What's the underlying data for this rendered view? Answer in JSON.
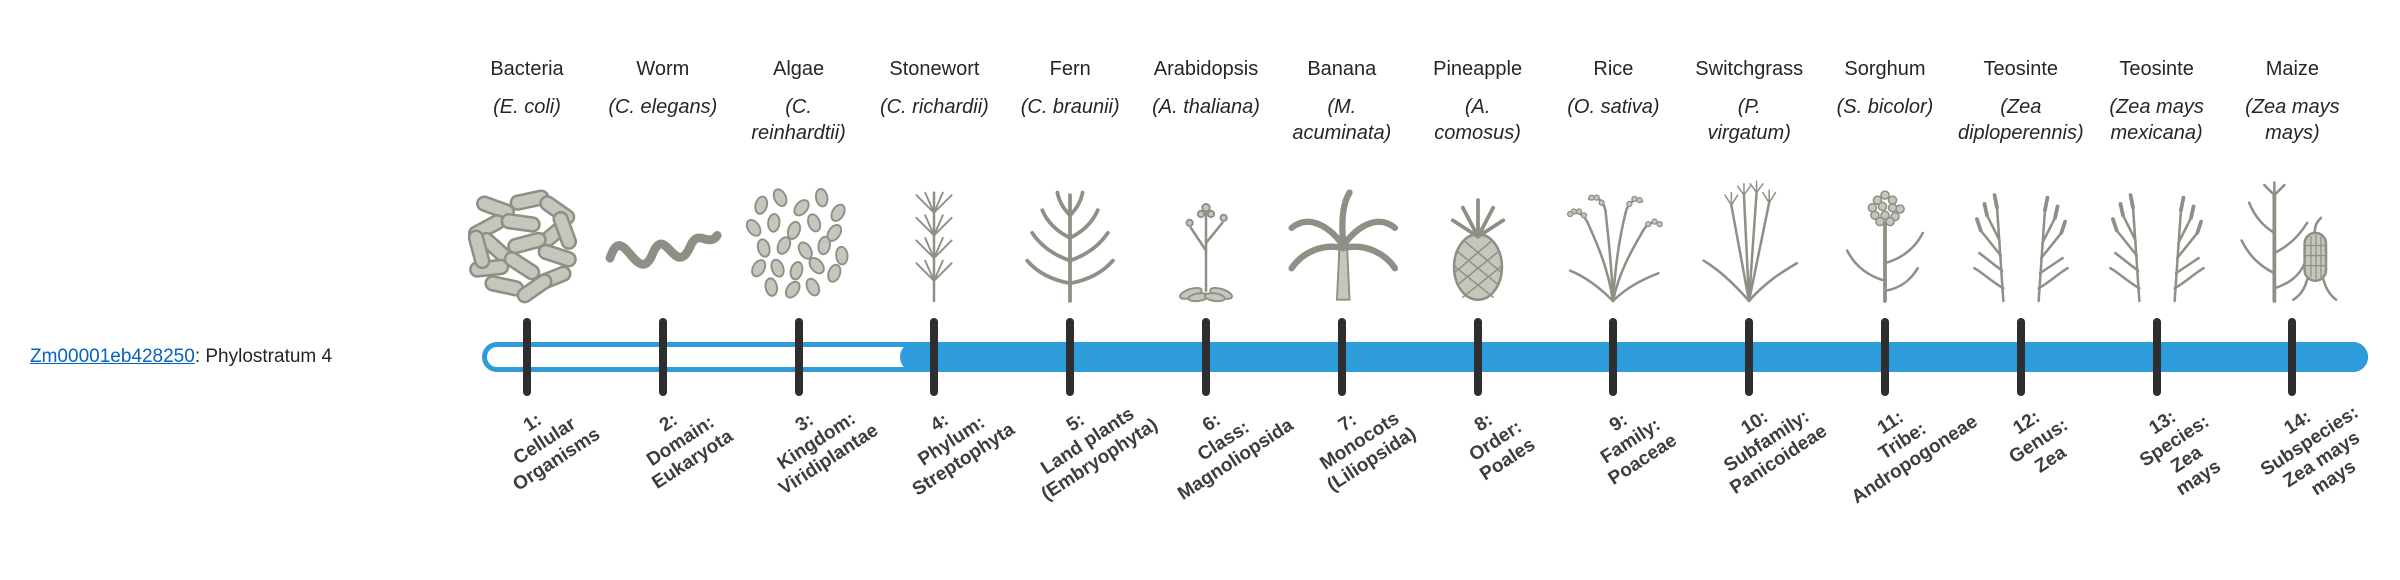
{
  "gene": {
    "id": "Zm00001eb428250",
    "annotation": ": Phylostratum 4",
    "phylostratum": 4
  },
  "colors": {
    "bar": "#2e9bdb",
    "tick": "#2e2e2e",
    "link": "#0563c1",
    "text": "#262626",
    "art_fill": "#c6c6bd",
    "art_stroke": "#8f8f86"
  },
  "species": [
    {
      "common": "Bacteria",
      "scientific_lines": [
        "(E. coli)"
      ],
      "icon": "bacteria-icon"
    },
    {
      "common": "Worm",
      "scientific_lines": [
        "(C. elegans)"
      ],
      "icon": "worm-icon"
    },
    {
      "common": "Algae",
      "scientific_lines": [
        "(C.",
        "reinhardtii)"
      ],
      "icon": "algae-icon"
    },
    {
      "common": "Stonewort",
      "scientific_lines": [
        "(C. richardii)"
      ],
      "icon": "stonewort-icon"
    },
    {
      "common": "Fern",
      "scientific_lines": [
        "(C. braunii)"
      ],
      "icon": "fern-icon"
    },
    {
      "common": "Arabidopsis",
      "scientific_lines": [
        "(A. thaliana)"
      ],
      "icon": "arabidopsis-icon"
    },
    {
      "common": "Banana",
      "scientific_lines": [
        "(M.",
        "acuminata)"
      ],
      "icon": "banana-icon"
    },
    {
      "common": "Pineapple",
      "scientific_lines": [
        "(A.",
        "comosus)"
      ],
      "icon": "pineapple-icon"
    },
    {
      "common": "Rice",
      "scientific_lines": [
        "(O. sativa)"
      ],
      "icon": "rice-icon"
    },
    {
      "common": "Switchgrass",
      "scientific_lines": [
        "(P.",
        "virgatum)"
      ],
      "icon": "switchgrass-icon"
    },
    {
      "common": "Sorghum",
      "scientific_lines": [
        "(S. bicolor)"
      ],
      "icon": "sorghum-icon"
    },
    {
      "common": "Teosinte",
      "scientific_lines": [
        "(Zea",
        "diploperennis)"
      ],
      "icon": "teosinte-icon"
    },
    {
      "common": "Teosinte",
      "scientific_lines": [
        "(Zea mays",
        "mexicana)"
      ],
      "icon": "teosinte-icon"
    },
    {
      "common": "Maize",
      "scientific_lines": [
        "(Zea mays",
        "mays)"
      ],
      "icon": "maize-icon"
    }
  ],
  "phylostrata": [
    {
      "lines": [
        "1:",
        "Cellular",
        "Organisms"
      ]
    },
    {
      "lines": [
        "2:",
        "Domain:",
        "Eukaryota"
      ]
    },
    {
      "lines": [
        "3:",
        "Kingdom:",
        "Viridiplantae"
      ]
    },
    {
      "lines": [
        "4:",
        "Phylum:",
        "Streptophyta"
      ]
    },
    {
      "lines": [
        "5:",
        "Land plants",
        "(Embryophyta)"
      ]
    },
    {
      "lines": [
        "6:",
        "Class:",
        "Magnoliopsida"
      ]
    },
    {
      "lines": [
        "7:",
        "Monocots",
        "(Liliopsida)"
      ]
    },
    {
      "lines": [
        "8:",
        "Order:",
        "Poales"
      ]
    },
    {
      "lines": [
        "9:",
        "Family:",
        "Poaceae"
      ]
    },
    {
      "lines": [
        "10:",
        "Subfamily:",
        "Panicoideae"
      ]
    },
    {
      "lines": [
        "11:",
        "Tribe:",
        "Andropogoneae"
      ]
    },
    {
      "lines": [
        "12:",
        "Genus:",
        "Zea"
      ]
    },
    {
      "lines": [
        "13:",
        "Species:",
        "Zea",
        "mays"
      ]
    },
    {
      "lines": [
        "14:",
        "Subspecies:",
        "Zea mays",
        "mays"
      ]
    }
  ],
  "chart_data": {
    "type": "bar",
    "title": "",
    "orientation": "horizontal",
    "categories": [
      "1: Cellular Organisms",
      "2: Domain: Eukaryota",
      "3: Kingdom: Viridiplantae",
      "4: Phylum: Streptophyta",
      "5: Land plants (Embryophyta)",
      "6: Class: Magnoliopsida",
      "7: Monocots (Liliopsida)",
      "8: Order: Poales",
      "9: Family: Poaceae",
      "10: Subfamily: Panicoideae",
      "11: Tribe: Andropogoneae",
      "12: Genus: Zea",
      "13: Species: Zea mays",
      "14: Subspecies: Zea mays mays"
    ],
    "top_axis_species": [
      "Bacteria (E. coli)",
      "Worm (C. elegans)",
      "Algae (C. reinhardtii)",
      "Stonewort (C. richardii)",
      "Fern (C. braunii)",
      "Arabidopsis (A. thaliana)",
      "Banana (M. acuminata)",
      "Pineapple (A. comosus)",
      "Rice (O. sativa)",
      "Switchgrass (P. virgatum)",
      "Sorghum (S. bicolor)",
      "Teosinte (Zea diploperennis)",
      "Teosinte (Zea mays mexicana)",
      "Maize (Zea mays mays)"
    ],
    "series": [
      {
        "name": "Zm00001eb428250: Phylostratum 4",
        "values": [
          0,
          0,
          0,
          1,
          1,
          1,
          1,
          1,
          1,
          1,
          1,
          1,
          1,
          1
        ]
      }
    ],
    "legend": false,
    "grid": false
  }
}
